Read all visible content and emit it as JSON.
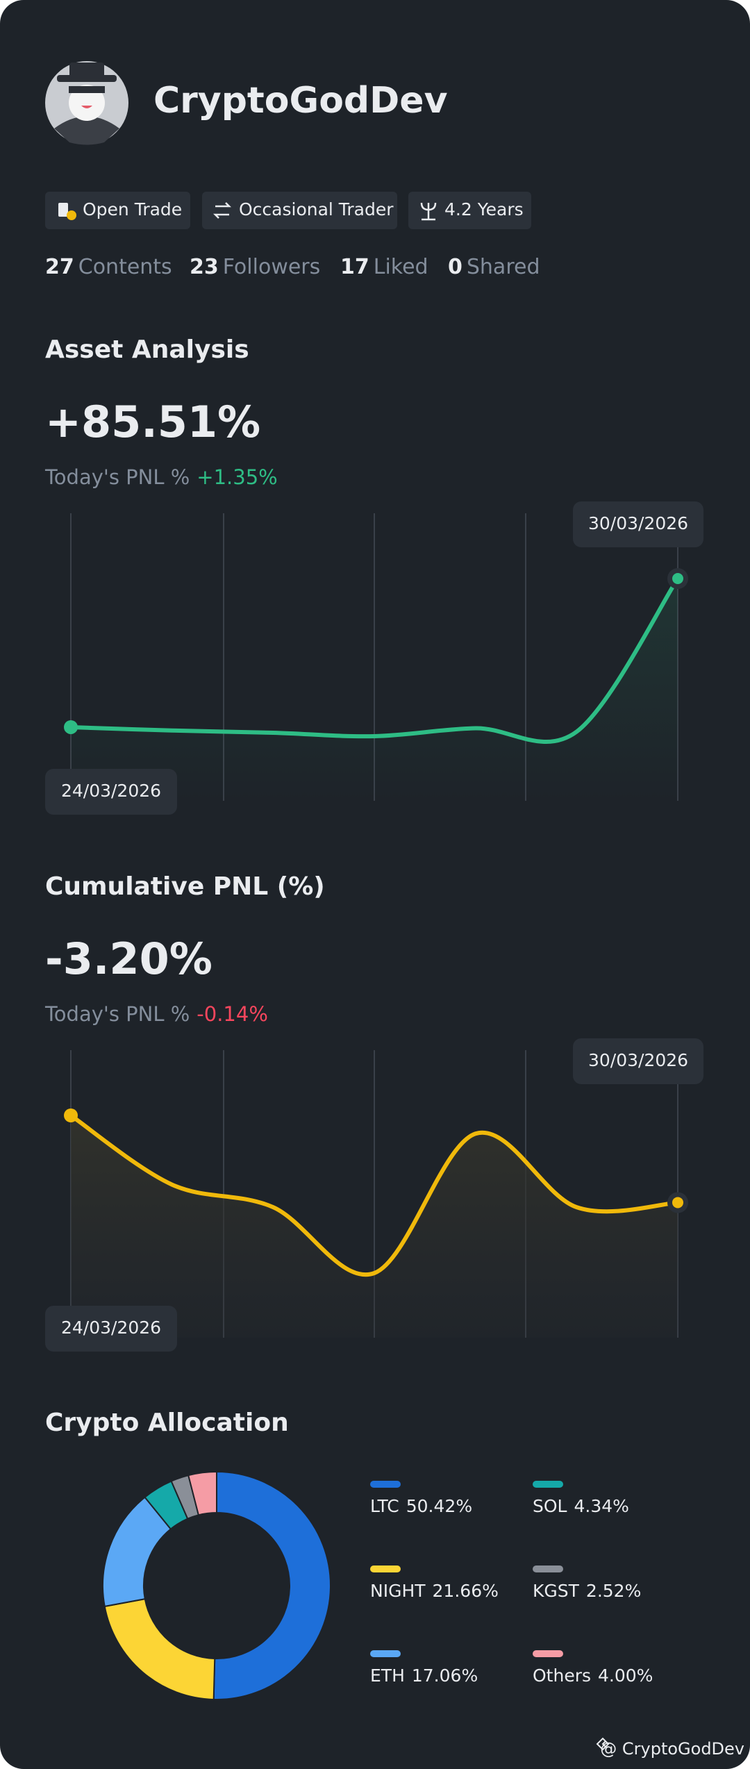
{
  "profile": {
    "name": "CryptoGodDev",
    "tags": [
      "Open Trade",
      "Occasional Trader",
      "4.2 Years"
    ],
    "stats": [
      {
        "value": 27,
        "label": "Contents"
      },
      {
        "value": 23,
        "label": "Followers"
      },
      {
        "value": 17,
        "label": "Liked"
      },
      {
        "value": 0,
        "label": "Shared"
      }
    ]
  },
  "chart_data": [
    {
      "type": "line",
      "title": "Asset Analysis",
      "headline": "+85.51%",
      "subtitle": "Today's PNL %",
      "subtitle_value": "+1.35%",
      "color": "#2ebd85",
      "x": [
        "24/03/2026",
        null,
        null,
        null,
        null,
        null,
        "30/03/2026"
      ],
      "values": [
        0,
        -1.9,
        -3.2,
        -5.2,
        -0.6,
        -2.6,
        85.51
      ]
    },
    {
      "type": "line",
      "title": "Cumulative PNL (%)",
      "headline": "-3.20%",
      "subtitle": "Today's PNL %",
      "subtitle_value": "-0.14%",
      "color": "#f0b90b",
      "headline_color": "#f6465d",
      "x": [
        "24/03/2026",
        null,
        null,
        null,
        null,
        null,
        "30/03/2026"
      ],
      "values": [
        0,
        -2.54,
        -3.37,
        -5.79,
        -0.67,
        -3.37,
        -3.2
      ]
    },
    {
      "type": "pie",
      "title": "Crypto Allocation",
      "categories": [
        "LTC",
        "NIGHT",
        "ETH",
        "SOL",
        "KGST",
        "Others"
      ],
      "values": [
        50.42,
        21.66,
        17.06,
        4.34,
        2.52,
        4.0
      ],
      "value_labels": [
        "50.42%",
        "21.66%",
        "17.06%",
        "4.34%",
        "2.52%",
        "4.00%"
      ],
      "colors": [
        "#1e6fd9",
        "#fcd535",
        "#5ba8f5",
        "#15a9a9",
        "#8a8f98",
        "#f59ca5"
      ]
    }
  ],
  "footer": "@ CryptoGodDev"
}
